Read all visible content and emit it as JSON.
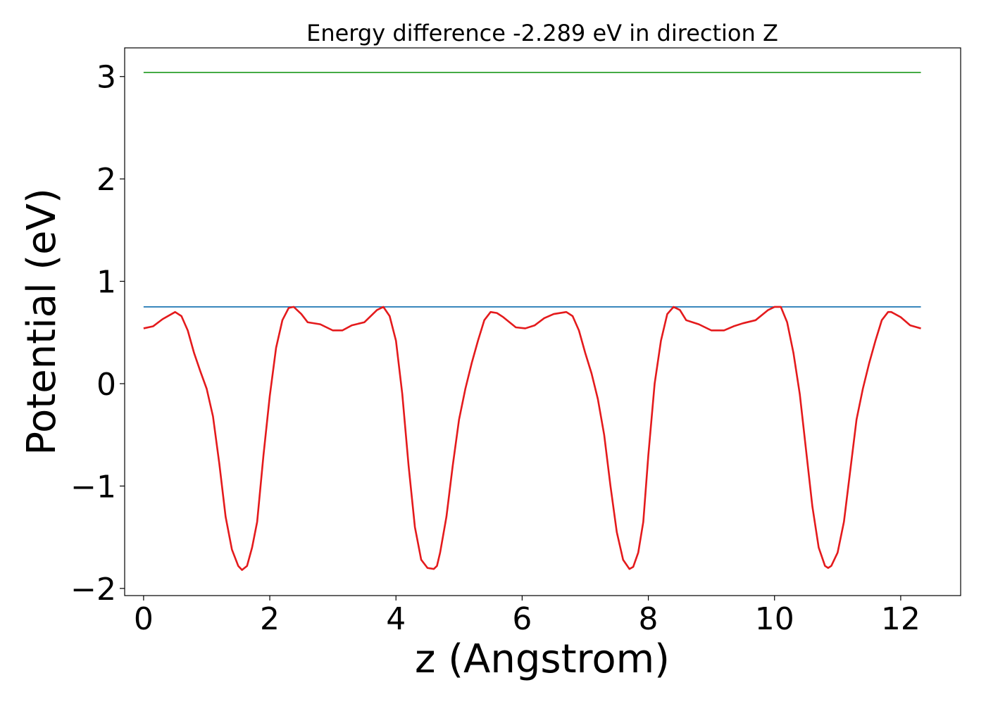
{
  "chart_data": {
    "type": "line",
    "title": "Energy difference -2.289 eV in direction Z",
    "xlabel": "z (Angstrom)",
    "ylabel": "Potential (eV)",
    "xlim": [
      -0.3,
      12.95
    ],
    "ylim": [
      -2.07,
      3.28
    ],
    "xticks": [
      0,
      2,
      4,
      6,
      8,
      10,
      12
    ],
    "xtick_labels": [
      "0",
      "2",
      "4",
      "6",
      "8",
      "10",
      "12"
    ],
    "yticks": [
      -2,
      -1,
      0,
      1,
      2,
      3
    ],
    "ytick_labels": [
      "−2",
      "−1",
      "0",
      "1",
      "2",
      "3"
    ],
    "grid": false,
    "legend": "none",
    "series": [
      {
        "color": "#2ca02c",
        "x": [
          0,
          12.32
        ],
        "y": [
          3.04,
          3.04
        ]
      },
      {
        "color": "#1f77b4",
        "x": [
          0,
          12.32
        ],
        "y": [
          0.75,
          0.75
        ]
      },
      {
        "color": "#e41a1c",
        "x": [
          0,
          0.15,
          0.3,
          0.5,
          0.6,
          0.7,
          0.8,
          0.9,
          1.0,
          1.1,
          1.2,
          1.3,
          1.4,
          1.5,
          1.56,
          1.64,
          1.72,
          1.8,
          1.9,
          2.0,
          2.1,
          2.2,
          2.3,
          2.38,
          2.5,
          2.6,
          2.8,
          3.0,
          3.15,
          3.3,
          3.5,
          3.7,
          3.8,
          3.9,
          4.0,
          4.1,
          4.2,
          4.3,
          4.4,
          4.5,
          4.6,
          4.65,
          4.7,
          4.8,
          4.9,
          5.0,
          5.1,
          5.2,
          5.3,
          5.4,
          5.5,
          5.6,
          5.7,
          5.9,
          6.05,
          6.2,
          6.35,
          6.5,
          6.7,
          6.8,
          6.9,
          7.0,
          7.1,
          7.2,
          7.3,
          7.4,
          7.5,
          7.6,
          7.7,
          7.76,
          7.84,
          7.92,
          8.0,
          8.1,
          8.2,
          8.3,
          8.4,
          8.5,
          8.6,
          8.7,
          8.8,
          9.0,
          9.2,
          9.35,
          9.5,
          9.7,
          9.9,
          10.0,
          10.1,
          10.2,
          10.3,
          10.4,
          10.5,
          10.6,
          10.7,
          10.8,
          10.85,
          10.9,
          11.0,
          11.1,
          11.2,
          11.3,
          11.4,
          11.5,
          11.6,
          11.7,
          11.8,
          11.85,
          12.0,
          12.15,
          12.32
        ],
        "y": [
          0.54,
          0.56,
          0.63,
          0.7,
          0.66,
          0.52,
          0.3,
          0.12,
          -0.05,
          -0.32,
          -0.78,
          -1.3,
          -1.62,
          -1.78,
          -1.82,
          -1.78,
          -1.6,
          -1.35,
          -0.7,
          -0.12,
          0.35,
          0.62,
          0.74,
          0.75,
          0.68,
          0.6,
          0.58,
          0.52,
          0.52,
          0.57,
          0.6,
          0.72,
          0.75,
          0.66,
          0.42,
          -0.1,
          -0.8,
          -1.4,
          -1.72,
          -1.8,
          -1.81,
          -1.78,
          -1.65,
          -1.3,
          -0.8,
          -0.35,
          -0.05,
          0.2,
          0.42,
          0.62,
          0.7,
          0.69,
          0.65,
          0.55,
          0.54,
          0.57,
          0.64,
          0.68,
          0.7,
          0.66,
          0.52,
          0.3,
          0.1,
          -0.15,
          -0.5,
          -1.0,
          -1.45,
          -1.72,
          -1.81,
          -1.79,
          -1.65,
          -1.35,
          -0.7,
          0.0,
          0.42,
          0.68,
          0.75,
          0.72,
          0.62,
          0.6,
          0.58,
          0.52,
          0.52,
          0.56,
          0.59,
          0.62,
          0.72,
          0.75,
          0.75,
          0.6,
          0.3,
          -0.1,
          -0.65,
          -1.2,
          -1.6,
          -1.78,
          -1.8,
          -1.78,
          -1.65,
          -1.35,
          -0.85,
          -0.35,
          -0.05,
          0.2,
          0.42,
          0.62,
          0.7,
          0.7,
          0.65,
          0.57,
          0.54
        ]
      }
    ]
  }
}
